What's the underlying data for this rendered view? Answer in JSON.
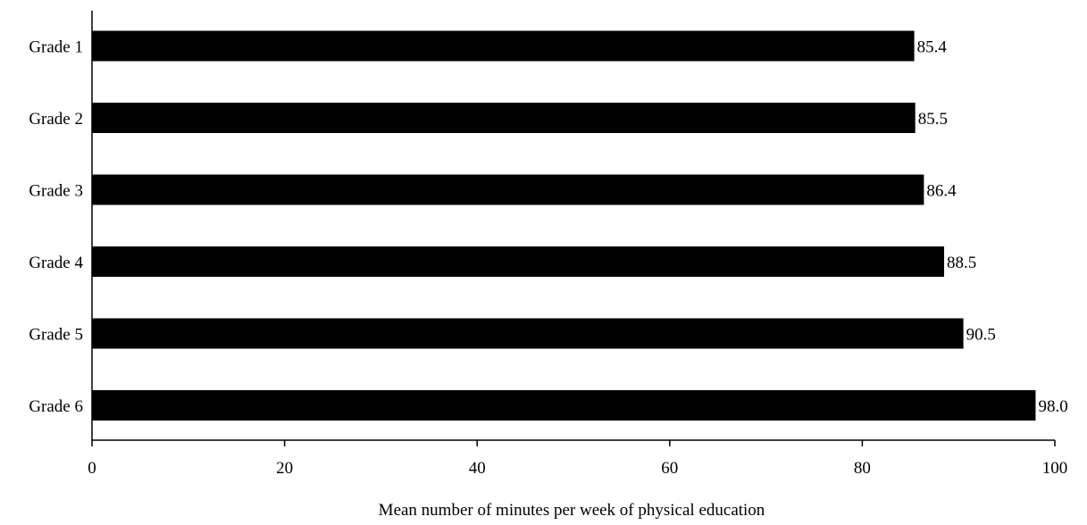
{
  "colors": {
    "bar": "#000000",
    "axis": "#000000",
    "background": "#ffffff",
    "text": "#000000"
  },
  "chart_data": {
    "type": "bar",
    "orientation": "horizontal",
    "categories": [
      "Grade 1",
      "Grade 2",
      "Grade 3",
      "Grade 4",
      "Grade 5",
      "Grade 6"
    ],
    "values": [
      85.4,
      85.5,
      86.4,
      88.5,
      90.5,
      98.0
    ],
    "value_labels": [
      "85.4",
      "85.5",
      "86.4",
      "88.5",
      "90.5",
      "98.0"
    ],
    "title": "",
    "xlabel": "Mean number of minutes per week of physical education",
    "ylabel": "",
    "xlim": [
      0,
      100
    ],
    "x_ticks": [
      0,
      20,
      40,
      60,
      80,
      100
    ],
    "x_tick_labels": [
      "0",
      "20",
      "40",
      "60",
      "80",
      "100"
    ],
    "grid": false,
    "legend": "none"
  }
}
